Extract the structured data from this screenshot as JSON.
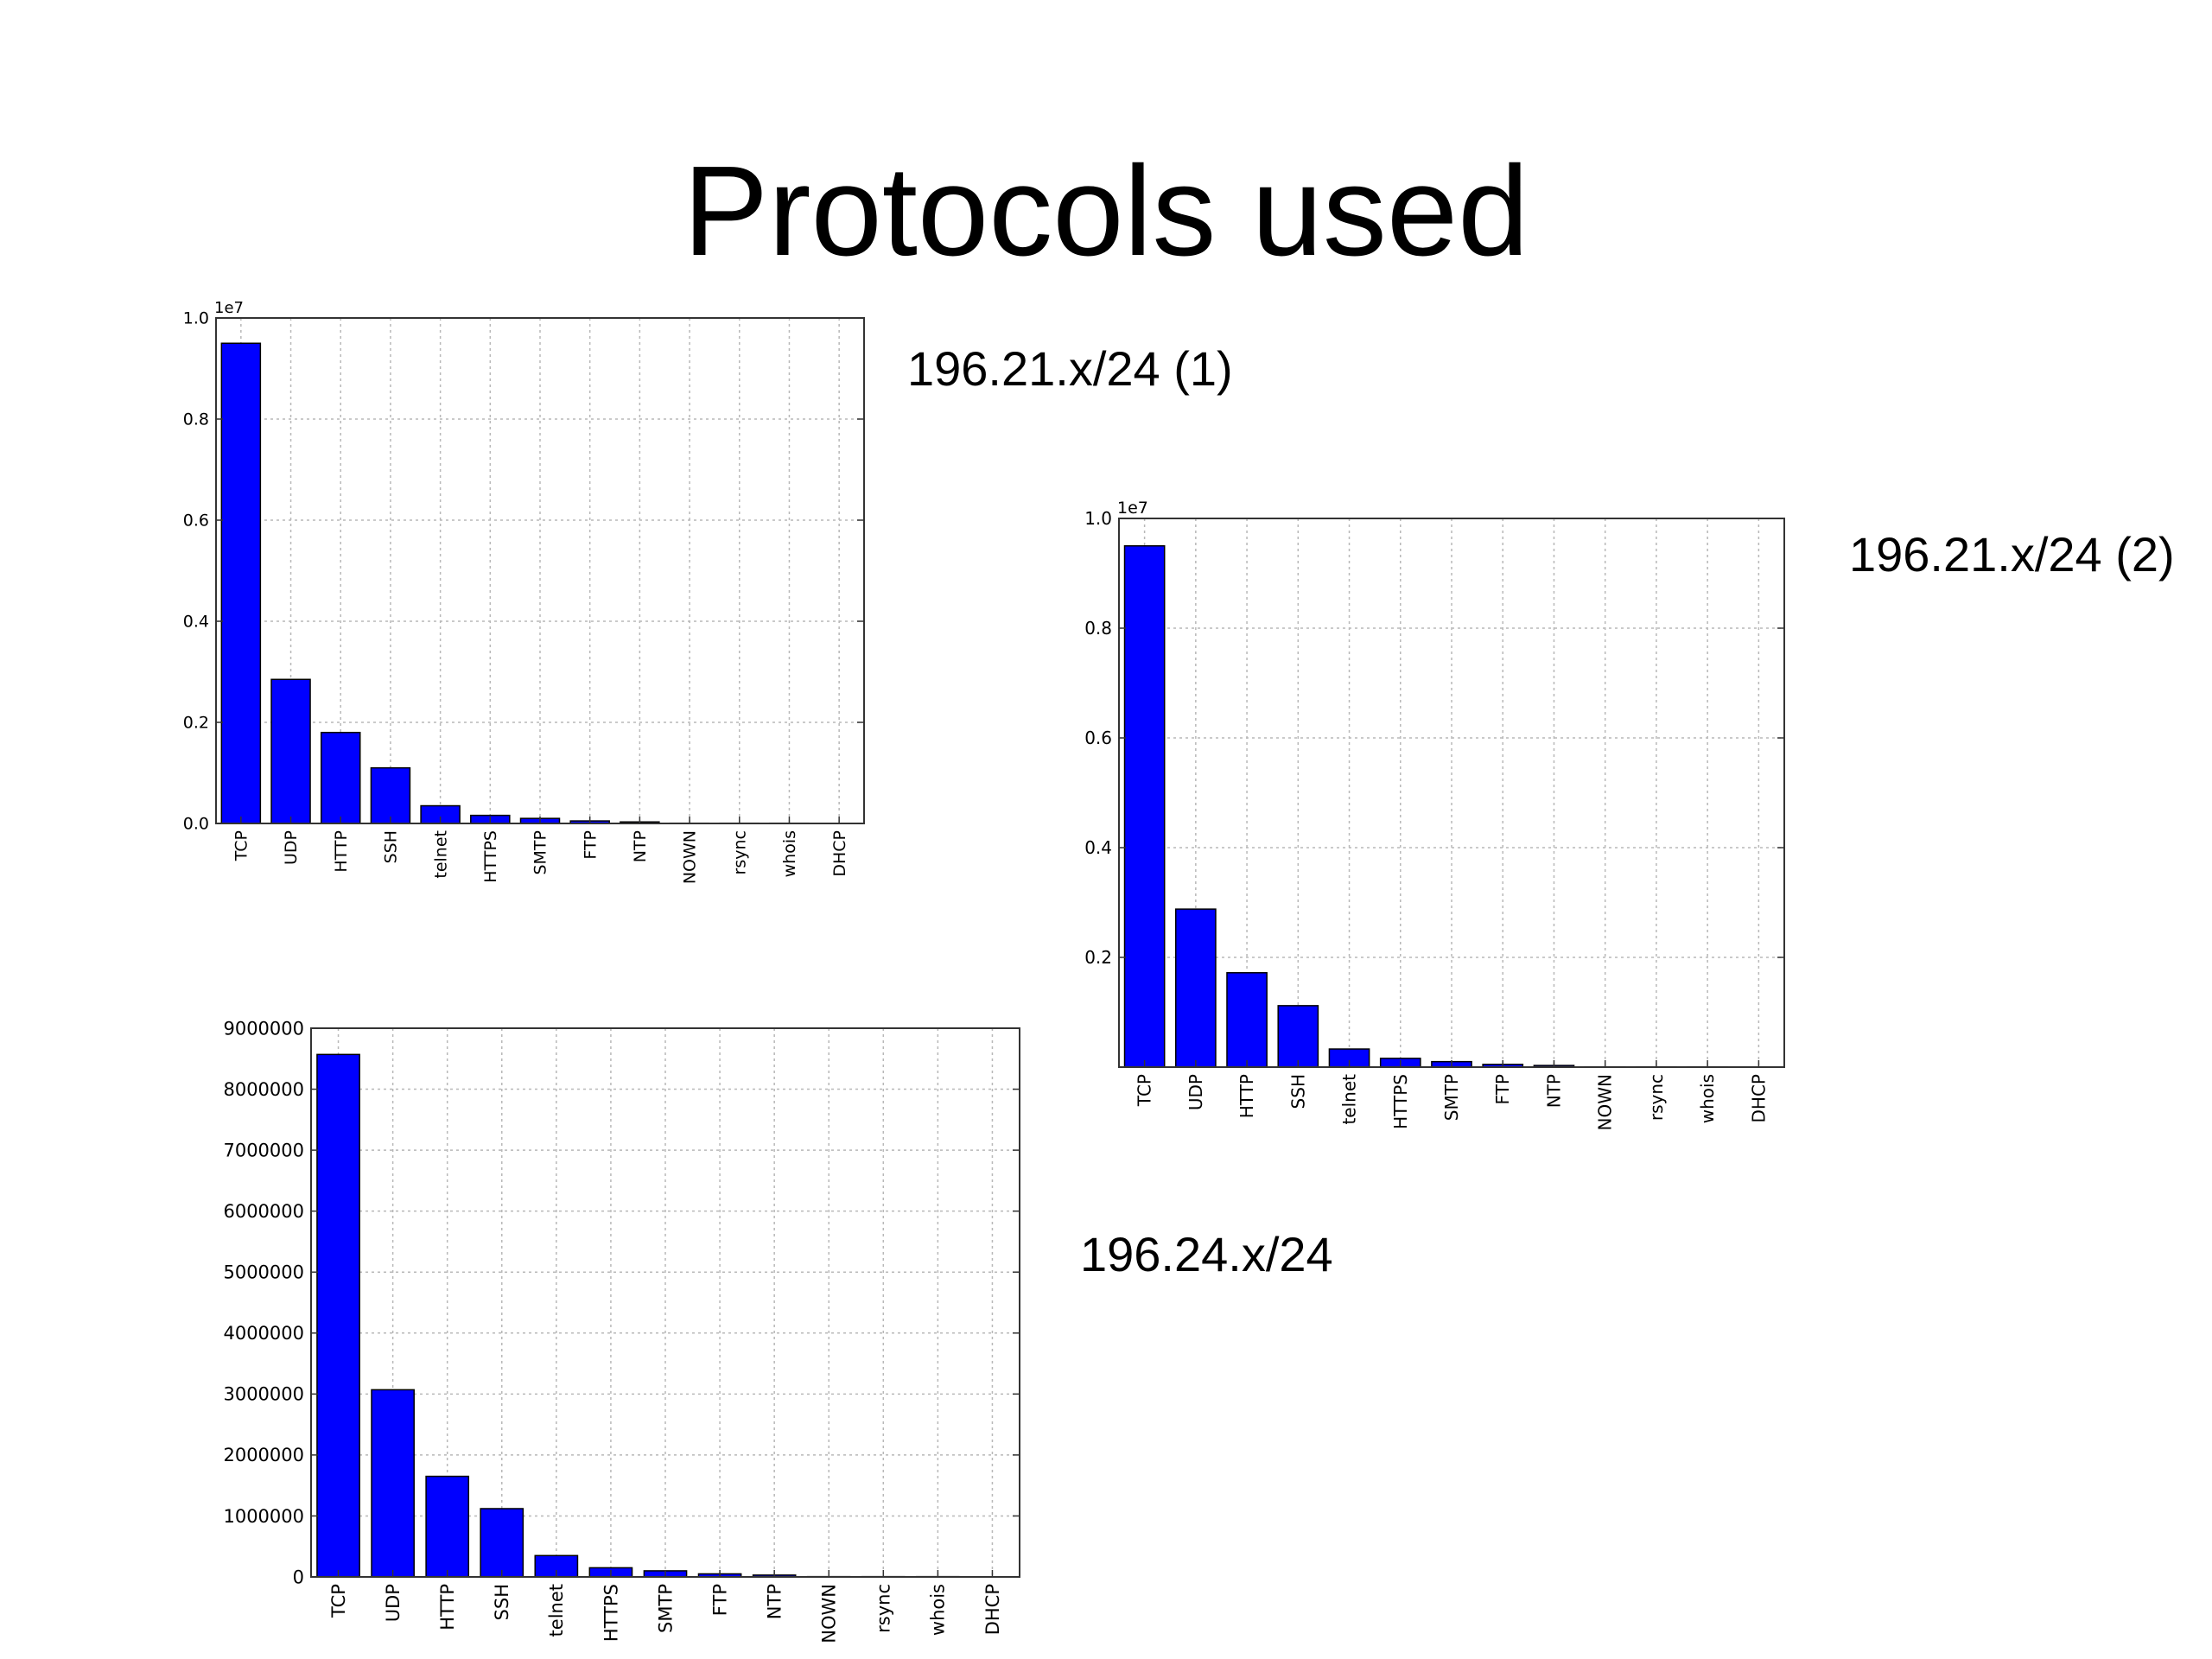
{
  "slide": {
    "title": "Protocols used"
  },
  "style": {
    "bar_color": "#0000ff",
    "bar_edge": "#000000",
    "grid_color": "#b8b8b8"
  },
  "chart_data": [
    {
      "id": "chart1",
      "type": "bar",
      "caption": "196.21.x/24 (1)",
      "categories": [
        "TCP",
        "UDP",
        "HTTP",
        "SSH",
        "telnet",
        "HTTPS",
        "SMTP",
        "FTP",
        "NTP",
        "NOWN",
        "rsync",
        "whois",
        "DHCP"
      ],
      "values": [
        9500000,
        2850000,
        1800000,
        1100000,
        350000,
        160000,
        100000,
        50000,
        30000,
        5000,
        5000,
        5000,
        2000
      ],
      "title": "",
      "xlabel": "",
      "ylabel": "",
      "ylim": [
        0,
        10000000
      ],
      "scale_label": "1e7",
      "yticks": [
        0,
        2000000,
        4000000,
        6000000,
        8000000,
        10000000
      ],
      "ytick_labels": [
        "0.0",
        "0.2",
        "0.4",
        "0.6",
        "0.8",
        "1.0"
      ],
      "grid": true
    },
    {
      "id": "chart2",
      "type": "bar",
      "caption": "196.21.x/24 (2)",
      "categories": [
        "TCP",
        "UDP",
        "HTTP",
        "SSH",
        "telnet",
        "HTTPS",
        "SMTP",
        "FTP",
        "NTP",
        "NOWN",
        "rsync",
        "whois",
        "DHCP"
      ],
      "values": [
        9500000,
        2880000,
        1720000,
        1120000,
        330000,
        160000,
        100000,
        50000,
        30000,
        5000,
        5000,
        5000,
        2000
      ],
      "title": "",
      "xlabel": "",
      "ylabel": "",
      "ylim": [
        0,
        10000000
      ],
      "scale_label": "1e7",
      "yticks": [
        2000000,
        4000000,
        6000000,
        8000000,
        10000000
      ],
      "ytick_labels": [
        "0.2",
        "0.4",
        "0.6",
        "0.8",
        "1.0"
      ],
      "grid": true
    },
    {
      "id": "chart3",
      "type": "bar",
      "caption": "196.24.x/24",
      "categories": [
        "TCP",
        "UDP",
        "HTTP",
        "SSH",
        "telnet",
        "HTTPS",
        "SMTP",
        "FTP",
        "NTP",
        "NOWN",
        "rsync",
        "whois",
        "DHCP"
      ],
      "values": [
        8570000,
        3070000,
        1650000,
        1120000,
        350000,
        150000,
        100000,
        50000,
        30000,
        5000,
        5000,
        5000,
        2000
      ],
      "title": "",
      "xlabel": "",
      "ylabel": "",
      "ylim": [
        0,
        9000000
      ],
      "scale_label": "",
      "yticks": [
        0,
        1000000,
        2000000,
        3000000,
        4000000,
        5000000,
        6000000,
        7000000,
        8000000,
        9000000
      ],
      "ytick_labels": [
        "0",
        "1000000",
        "2000000",
        "3000000",
        "4000000",
        "5000000",
        "6000000",
        "7000000",
        "8000000",
        "9000000"
      ],
      "grid": true
    }
  ]
}
